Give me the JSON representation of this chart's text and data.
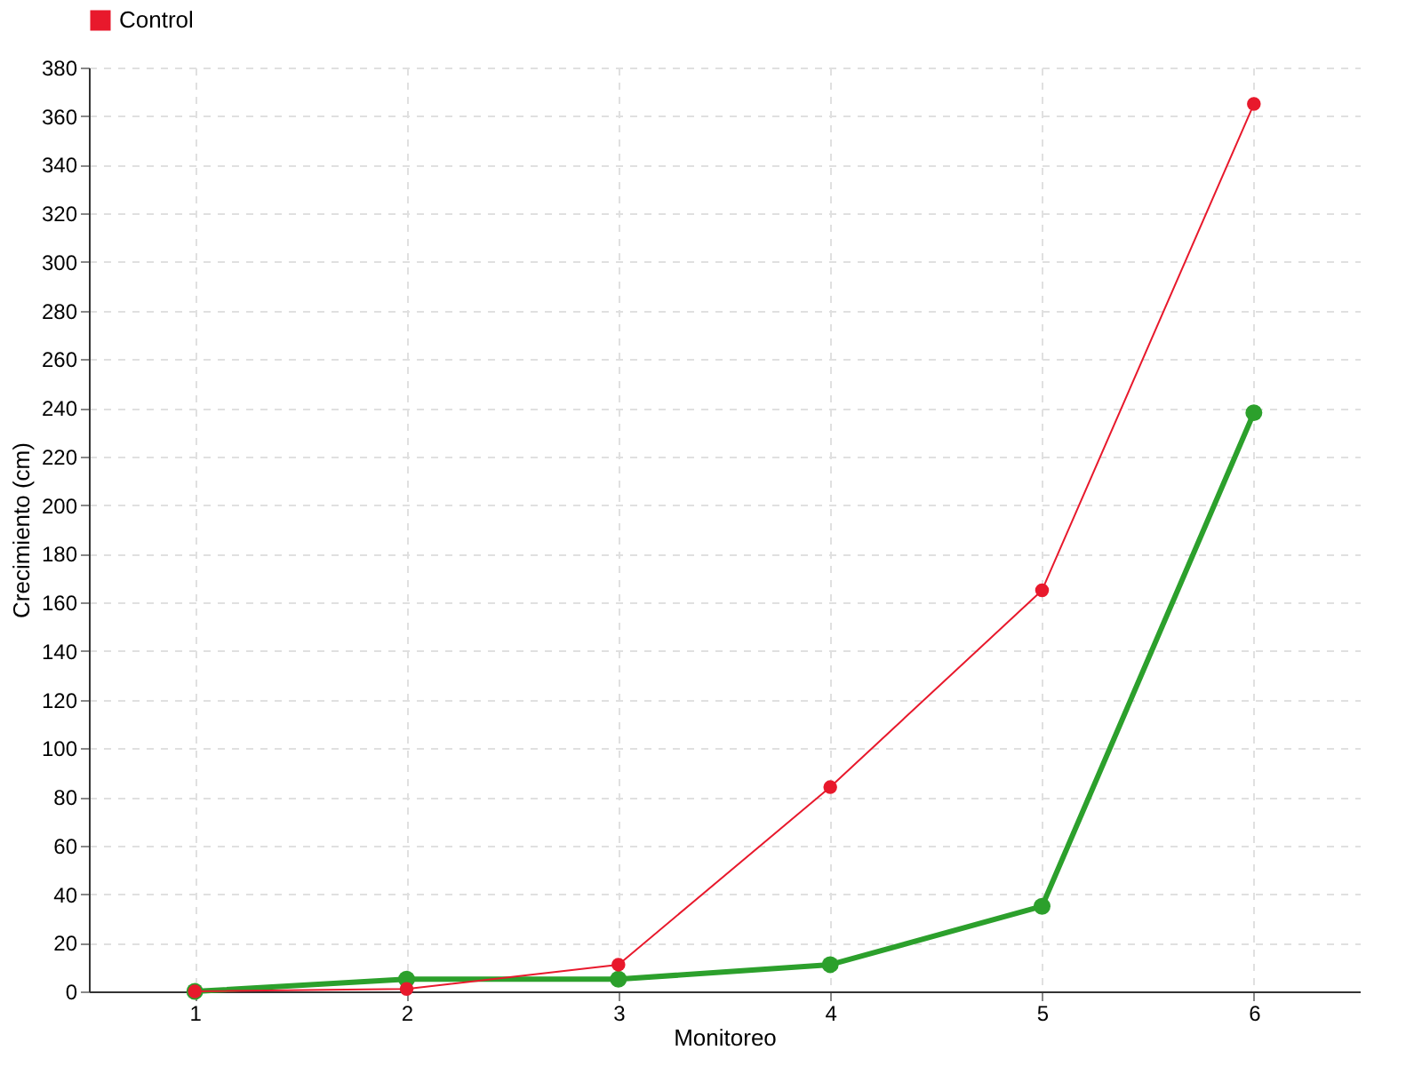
{
  "chart_data": {
    "type": "line",
    "xlabel": "Monitoreo",
    "ylabel": "Crecimiento (cm)",
    "x": [
      1,
      2,
      3,
      4,
      5,
      6
    ],
    "series": [
      {
        "color": "#2ca02c",
        "values": [
          0,
          5,
          5,
          11,
          35,
          238
        ]
      },
      {
        "name": "Control",
        "color": "#e8192c",
        "values": [
          0,
          1,
          11,
          84,
          165,
          365
        ]
      }
    ],
    "xlim": [
      0.5,
      6.5
    ],
    "xticks": [
      1,
      2,
      3,
      4,
      5,
      6
    ],
    "ylim": [
      0,
      380
    ],
    "yticks": [
      0,
      20,
      40,
      60,
      80,
      100,
      120,
      140,
      160,
      180,
      200,
      220,
      240,
      260,
      280,
      300,
      320,
      340,
      360,
      380
    ],
    "grid": true,
    "legend": "top left",
    "marker": "circle",
    "line_style": "solid"
  }
}
